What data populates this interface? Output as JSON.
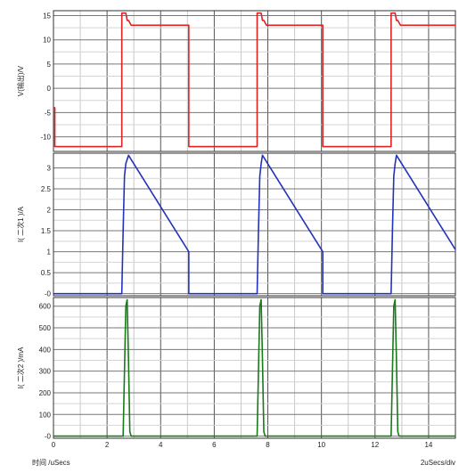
{
  "chart_data": [
    {
      "type": "line",
      "ylabel": "V(输出)/V",
      "xlim": [
        0,
        15
      ],
      "ylim": [
        -13,
        16
      ],
      "yticks": [
        -10,
        -5,
        0,
        5,
        10,
        15
      ],
      "color": "#dd2222",
      "series": [
        {
          "x": [
            0,
            0.05,
            0.05,
            2.55,
            2.55,
            2.6,
            2.7,
            2.75,
            2.8,
            2.9,
            5.05,
            5.05,
            7.6,
            7.6,
            7.65,
            7.75,
            7.8,
            7.85,
            7.95,
            10.05,
            10.05,
            12.6,
            12.6,
            12.65,
            12.75,
            12.8,
            12.85,
            12.95,
            15
          ],
          "y": [
            -4,
            -4,
            -12,
            -12,
            15.5,
            15.5,
            15.5,
            14,
            14,
            13,
            13,
            -12,
            -12,
            15.5,
            15.5,
            15.5,
            14,
            14,
            13,
            13,
            -12,
            -12,
            15.5,
            15.5,
            15.5,
            14,
            14,
            13,
            13
          ]
        }
      ]
    },
    {
      "type": "line",
      "ylabel": "I( 二次1 )/A",
      "xlim": [
        0,
        15
      ],
      "ylim": [
        -0.05,
        3.35
      ],
      "yticks": [
        0,
        0.5,
        1,
        1.5,
        2,
        2.5,
        3
      ],
      "ytick_labels": [
        "-0",
        "0.5",
        "1",
        "1.5",
        "2",
        "2.5",
        "3"
      ],
      "color": "#2233bb",
      "series": [
        {
          "x": [
            0,
            2.55,
            2.6,
            2.65,
            2.7,
            2.8,
            5.05,
            5.05,
            7.6,
            7.65,
            7.7,
            7.75,
            7.8,
            10.05,
            10.05,
            12.6,
            12.65,
            12.7,
            12.75,
            12.8,
            15
          ],
          "y": [
            0,
            0,
            1.5,
            2.8,
            3.1,
            3.3,
            1,
            0,
            0,
            1.5,
            2.8,
            3.1,
            3.3,
            1,
            0,
            0,
            1.5,
            2.8,
            3.1,
            3.3,
            1.05
          ]
        }
      ]
    },
    {
      "type": "line",
      "ylabel": "I( 二次2 )/mA",
      "xlabel": "时间 /uSecs",
      "xunit": "2uSecs/div",
      "xlim": [
        0,
        15
      ],
      "ylim": [
        -10,
        640
      ],
      "yticks": [
        0,
        100,
        200,
        300,
        400,
        500,
        600
      ],
      "ytick_labels": [
        "-0",
        "100",
        "200",
        "300",
        "400",
        "500",
        "600"
      ],
      "xticks": [
        0,
        2,
        4,
        6,
        8,
        10,
        12,
        14
      ],
      "color": "#1a7a1a",
      "series": [
        {
          "x": [
            0,
            2.6,
            2.65,
            2.7,
            2.75,
            2.8,
            2.85,
            2.9,
            7.6,
            7.65,
            7.7,
            7.75,
            7.8,
            7.85,
            7.9,
            12.6,
            12.65,
            12.7,
            12.75,
            12.8,
            12.85,
            12.9,
            15
          ],
          "y": [
            0,
            0,
            300,
            600,
            630,
            350,
            20,
            0,
            0,
            300,
            600,
            630,
            350,
            20,
            0,
            0,
            300,
            600,
            630,
            350,
            20,
            0,
            0
          ]
        }
      ]
    }
  ]
}
